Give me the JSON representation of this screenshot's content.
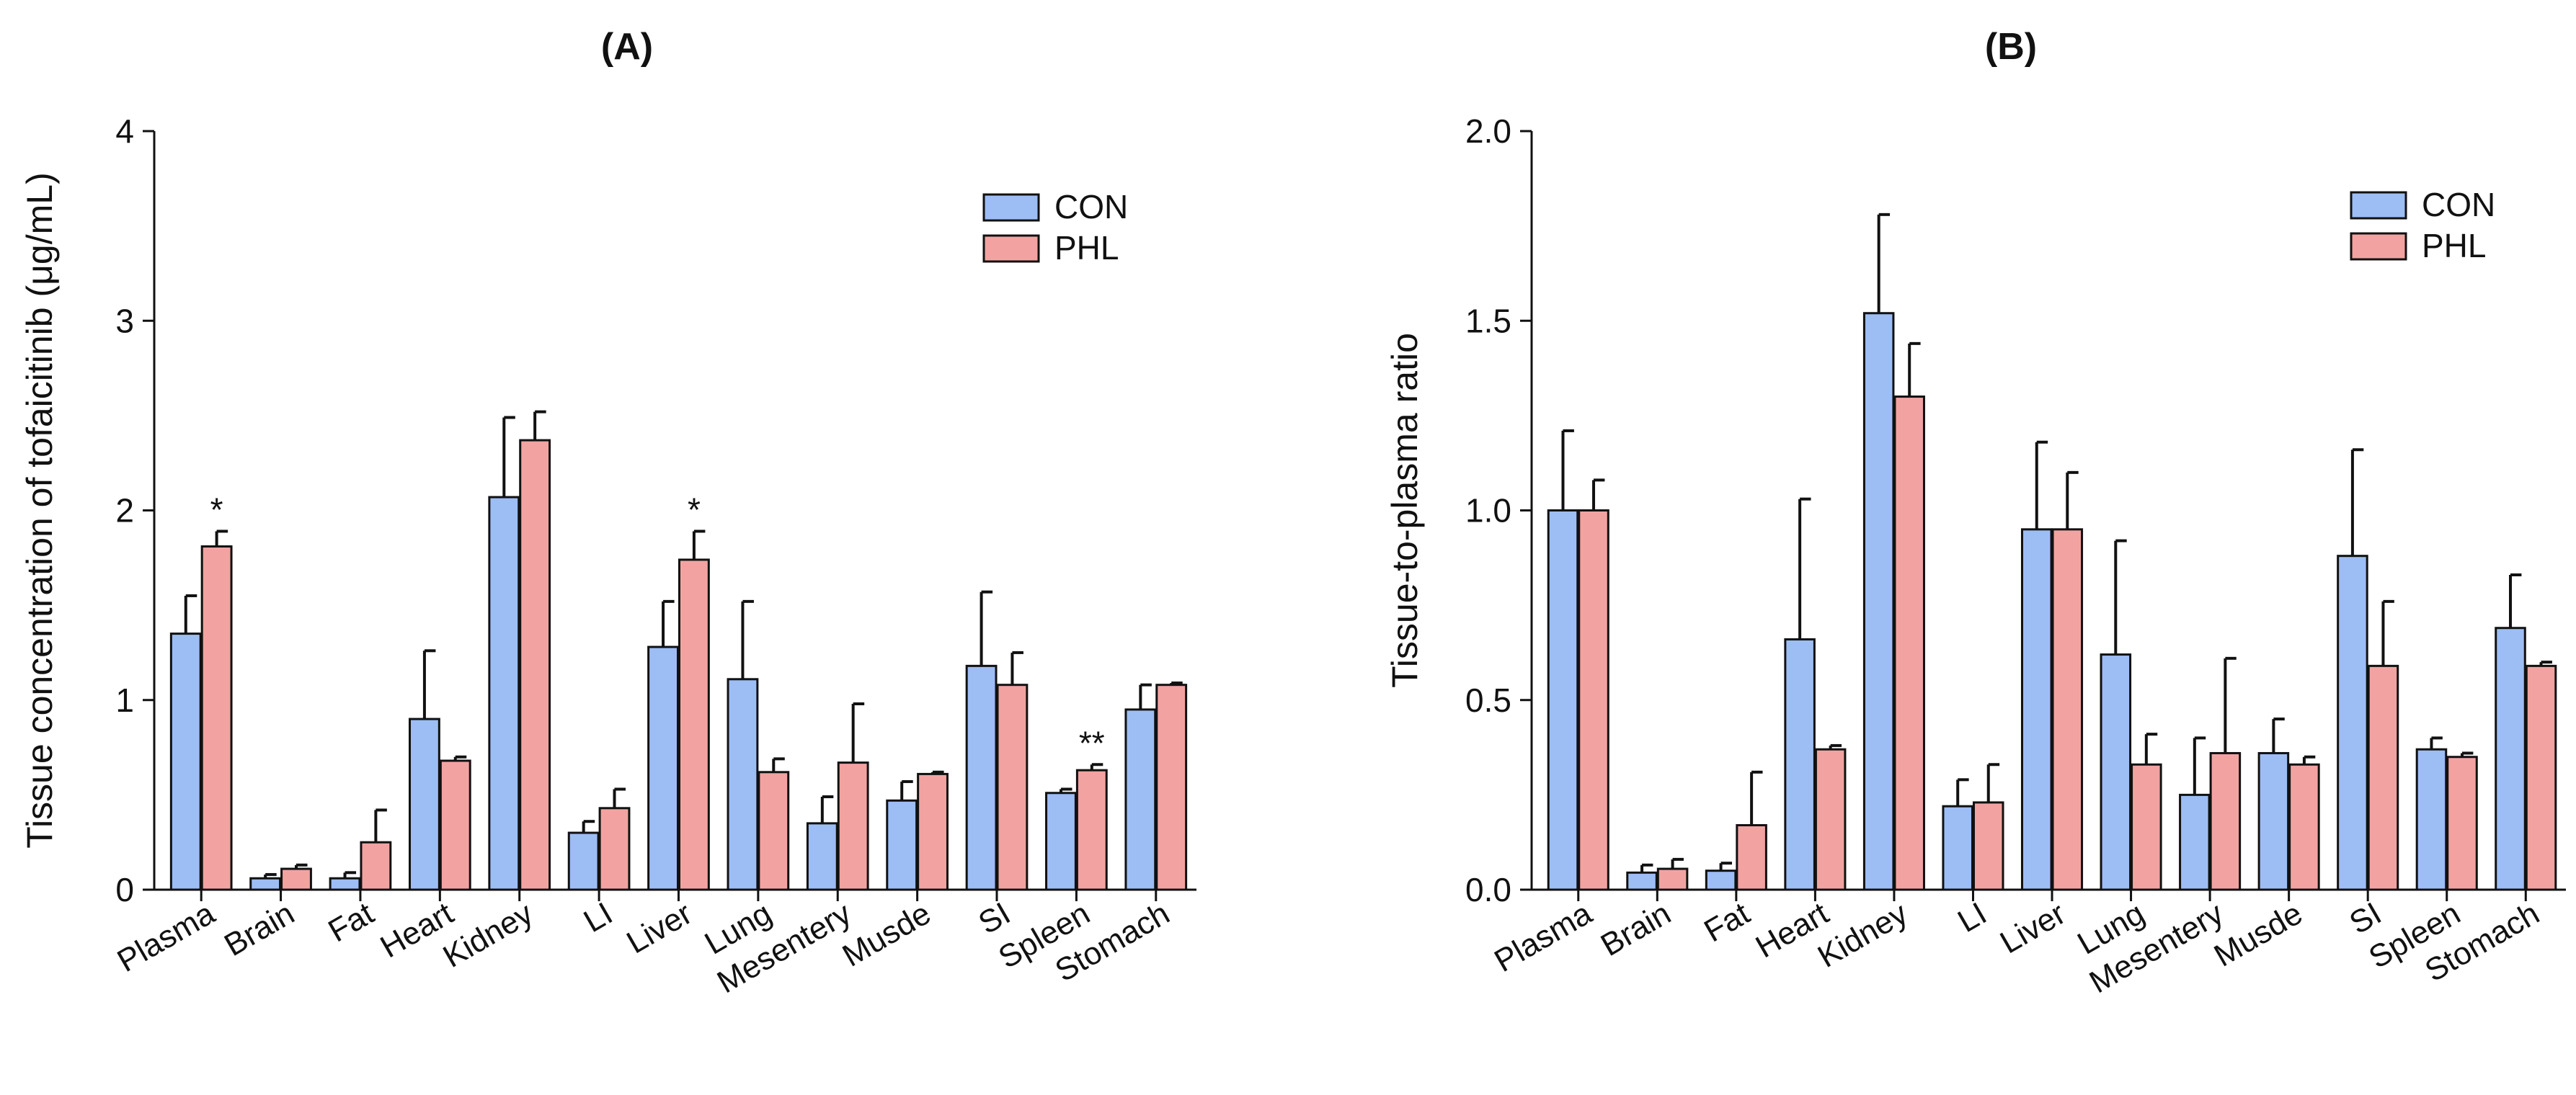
{
  "chart_data": [
    {
      "panel": "A",
      "type": "bar",
      "title": "(A)",
      "xlabel": "",
      "ylabel": "Tissue concentration of tofaicitinib (μg/mL)",
      "ylim": [
        0,
        4
      ],
      "yticks": [
        "0",
        "1",
        "2",
        "3",
        "4"
      ],
      "categories": [
        "Plasma",
        "Brain",
        "Fat",
        "Heart",
        "Kidney",
        "LI",
        "Liver",
        "Lung",
        "Mesentery",
        "Musde",
        "SI",
        "Spleen",
        "Stomach"
      ],
      "legend_position": "top-right",
      "series": [
        {
          "name": "CON",
          "color": "#9dbdf5",
          "values": [
            1.35,
            0.06,
            0.06,
            0.9,
            2.07,
            0.3,
            1.28,
            1.11,
            0.35,
            0.47,
            1.18,
            0.51,
            0.95
          ],
          "errors": [
            0.2,
            0.02,
            0.03,
            0.36,
            0.42,
            0.06,
            0.24,
            0.41,
            0.14,
            0.1,
            0.39,
            0.02,
            0.13
          ]
        },
        {
          "name": "PHL",
          "color": "#f2a3a1",
          "values": [
            1.81,
            0.11,
            0.25,
            0.68,
            2.37,
            0.43,
            1.74,
            0.62,
            0.67,
            0.61,
            1.08,
            0.63,
            1.08
          ],
          "errors": [
            0.08,
            0.02,
            0.17,
            0.02,
            0.15,
            0.1,
            0.15,
            0.07,
            0.31,
            0.01,
            0.17,
            0.03,
            0.01
          ]
        }
      ],
      "annotations": [
        {
          "category": "Plasma",
          "text": "*"
        },
        {
          "category": "Liver",
          "text": "*"
        },
        {
          "category": "Spleen",
          "text": "**"
        }
      ]
    },
    {
      "panel": "B",
      "type": "bar",
      "title": "(B)",
      "xlabel": "",
      "ylabel": "Tissue-to-plasma ratio",
      "ylim": [
        0,
        2.0
      ],
      "yticks": [
        "0.0",
        "0.5",
        "1.0",
        "1.5",
        "2.0"
      ],
      "categories": [
        "Plasma",
        "Brain",
        "Fat",
        "Heart",
        "Kidney",
        "LI",
        "Liver",
        "Lung",
        "Mesentery",
        "Musde",
        "SI",
        "Spleen",
        "Stomach"
      ],
      "legend_position": "top-right",
      "series": [
        {
          "name": "CON",
          "color": "#9dbdf5",
          "values": [
            1.0,
            0.045,
            0.05,
            0.66,
            1.52,
            0.22,
            0.95,
            0.62,
            0.25,
            0.36,
            0.88,
            0.37,
            0.69
          ],
          "errors": [
            0.21,
            0.02,
            0.02,
            0.37,
            0.26,
            0.07,
            0.23,
            0.3,
            0.15,
            0.09,
            0.28,
            0.03,
            0.14
          ]
        },
        {
          "name": "PHL",
          "color": "#f2a3a1",
          "values": [
            1.0,
            0.055,
            0.17,
            0.37,
            1.3,
            0.23,
            0.95,
            0.33,
            0.36,
            0.33,
            0.59,
            0.35,
            0.59
          ],
          "errors": [
            0.08,
            0.025,
            0.14,
            0.01,
            0.14,
            0.1,
            0.15,
            0.08,
            0.25,
            0.02,
            0.17,
            0.01,
            0.01
          ]
        }
      ],
      "annotations": []
    }
  ]
}
